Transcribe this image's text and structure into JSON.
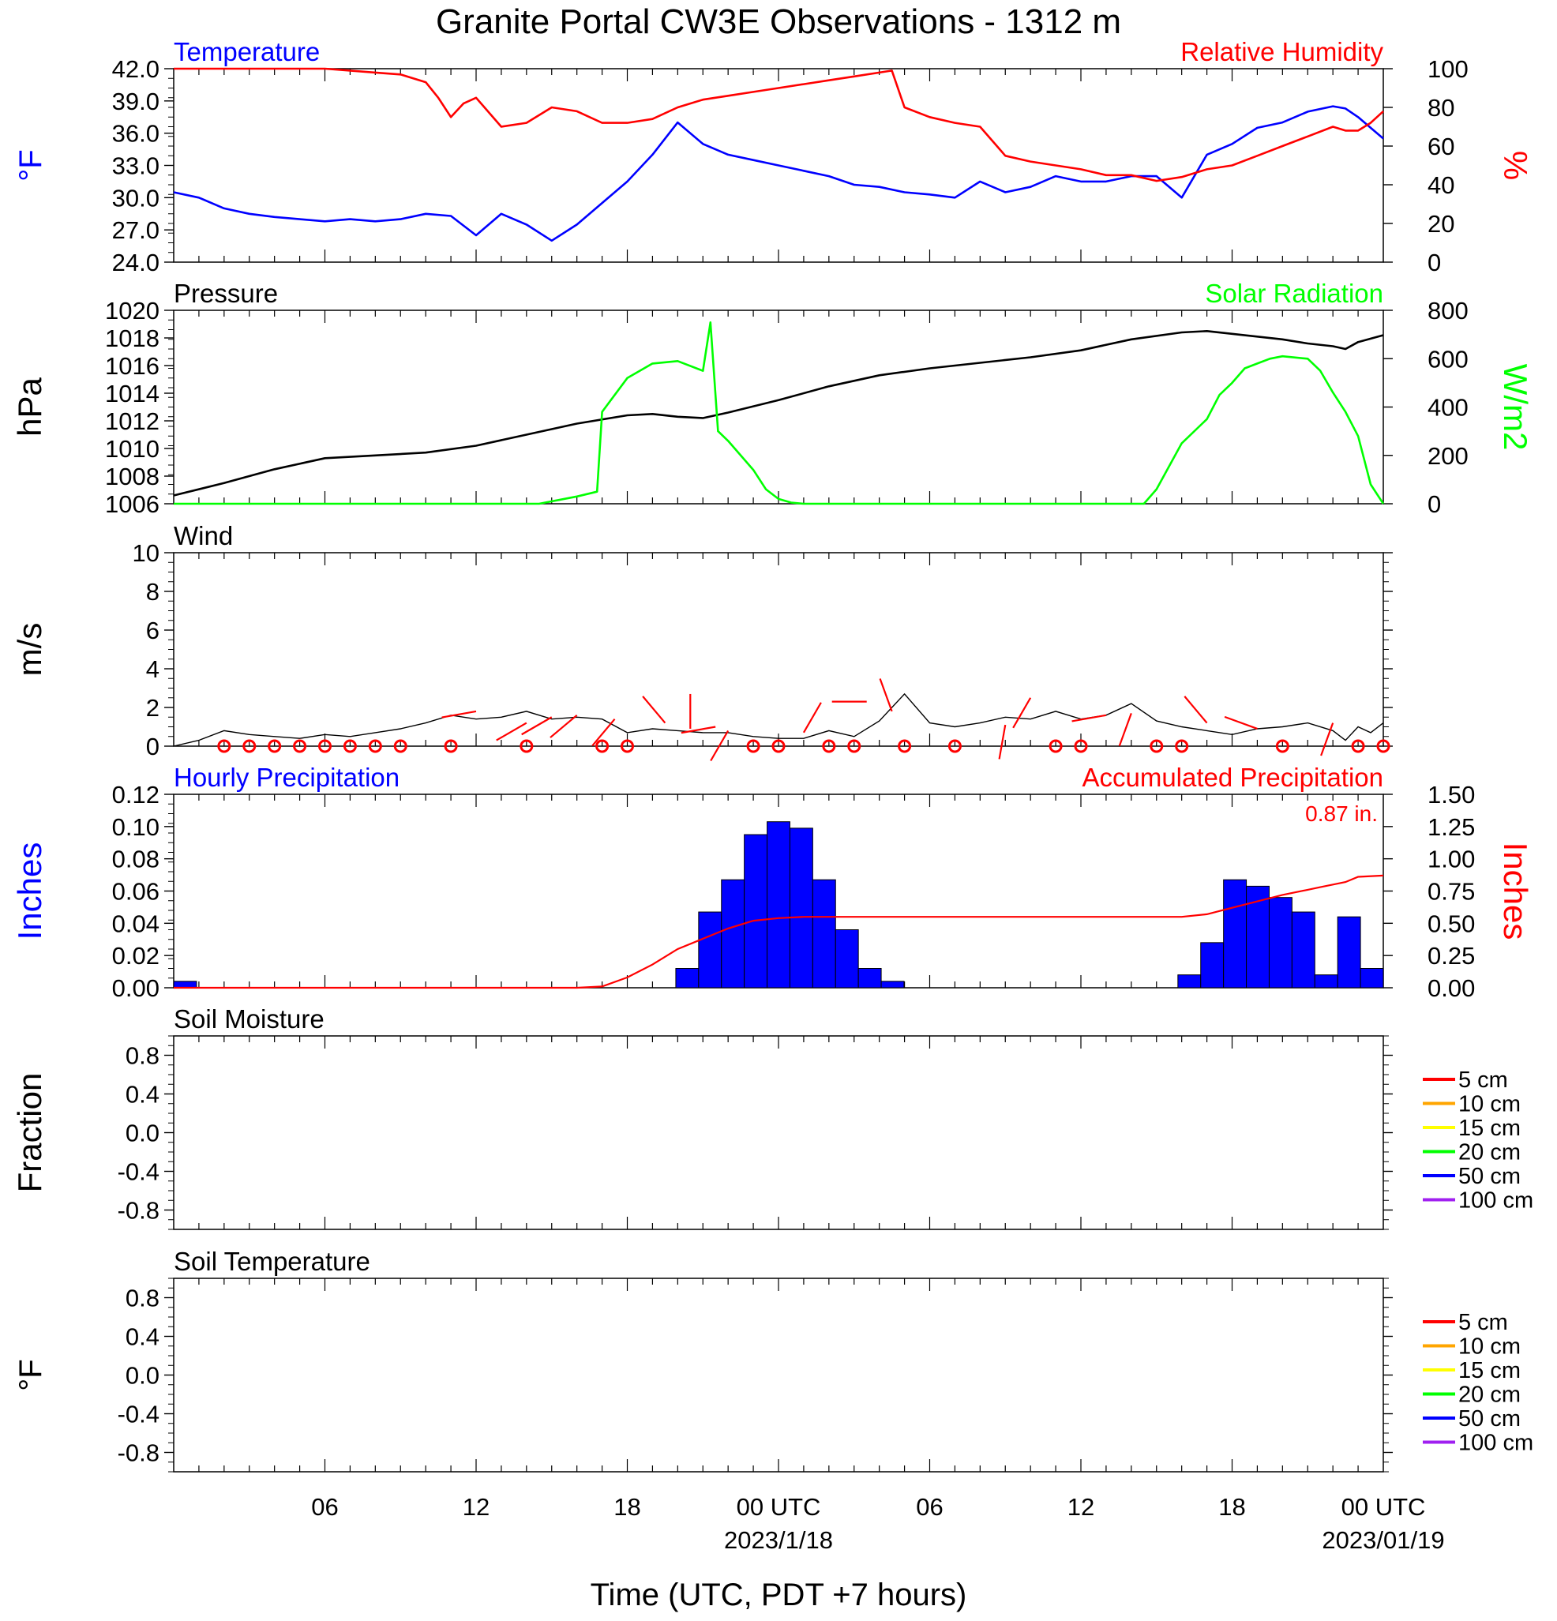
{
  "figure": {
    "title": "Granite Portal CW3E Observations - 1312 m",
    "xaxis_title": "Time (UTC, PDT +7 hours)",
    "x_hours_total": 48,
    "x_ticks": [
      {
        "hour": 6,
        "label": "06",
        "date": ""
      },
      {
        "hour": 12,
        "label": "12",
        "date": ""
      },
      {
        "hour": 18,
        "label": "18",
        "date": ""
      },
      {
        "hour": 24,
        "label": "00 UTC",
        "date": "2023/1/18"
      },
      {
        "hour": 30,
        "label": "06",
        "date": ""
      },
      {
        "hour": 36,
        "label": "12",
        "date": ""
      },
      {
        "hour": 42,
        "label": "18",
        "date": ""
      },
      {
        "hour": 48,
        "label": "00 UTC",
        "date": "2023/01/19"
      }
    ]
  },
  "chart_data": [
    {
      "type": "line",
      "id": "temp_rh",
      "title_left": "Temperature",
      "title_right": "Relative Humidity",
      "ylabel_left": "°F",
      "ylabel_right": "%",
      "ylim_left": [
        24,
        42
      ],
      "ylim_right": [
        0,
        100
      ],
      "yticks_left": [
        "24.0",
        "27.0",
        "30.0",
        "33.0",
        "36.0",
        "39.0",
        "42.0"
      ],
      "yticks_right": [
        "0",
        "20",
        "40",
        "60",
        "80",
        "100"
      ],
      "colors": {
        "left": "#0000ff",
        "right": "#ff0000"
      },
      "series": [
        {
          "name": "Temperature",
          "axis": "left",
          "color": "#0000ff",
          "x": [
            0,
            1,
            2,
            3,
            4,
            5,
            6,
            7,
            8,
            9,
            10,
            11,
            12,
            13,
            14,
            15,
            16,
            17,
            18,
            19,
            20,
            21,
            22,
            23,
            24,
            25,
            26,
            27,
            28,
            29,
            30,
            31,
            32,
            33,
            34,
            35,
            36,
            37,
            38,
            39,
            40,
            41,
            42,
            43,
            44,
            45,
            46,
            46.5,
            47,
            47.5,
            48
          ],
          "y": [
            30.5,
            30.0,
            29.0,
            28.5,
            28.2,
            28.0,
            27.8,
            28.0,
            27.8,
            28.0,
            28.5,
            28.3,
            26.5,
            28.5,
            27.5,
            26.0,
            27.5,
            29.5,
            31.5,
            34.0,
            37.0,
            35.0,
            34.0,
            33.5,
            33.0,
            32.5,
            32.0,
            31.2,
            31.0,
            30.5,
            30.3,
            30.0,
            31.5,
            30.5,
            31.0,
            32.0,
            31.5,
            31.5,
            32.0,
            32.0,
            30.0,
            34.0,
            35.0,
            36.5,
            37.0,
            38.0,
            38.5,
            38.3,
            37.5,
            36.5,
            35.5
          ]
        },
        {
          "name": "Relative Humidity",
          "axis": "right",
          "color": "#ff0000",
          "x": [
            0,
            1,
            2,
            3,
            4,
            5,
            6,
            7,
            8,
            9,
            10,
            10.5,
            11,
            11.5,
            12,
            13,
            14,
            15,
            16,
            17,
            18,
            19,
            20,
            21,
            22,
            23,
            24,
            25,
            26,
            27,
            28,
            28.5,
            29,
            30,
            31,
            32,
            33,
            34,
            35,
            36,
            37,
            38,
            39,
            40,
            41,
            42,
            43,
            44,
            45,
            46,
            46.5,
            47,
            47.5,
            48
          ],
          "y": [
            100,
            100,
            100,
            100,
            100,
            100,
            100,
            99,
            98,
            97,
            93,
            85,
            75,
            82,
            85,
            70,
            72,
            80,
            78,
            72,
            72,
            74,
            80,
            84,
            86,
            88,
            90,
            92,
            94,
            96,
            98,
            99,
            80,
            75,
            72,
            70,
            55,
            52,
            50,
            48,
            45,
            45,
            42,
            44,
            48,
            50,
            55,
            60,
            65,
            70,
            68,
            68,
            72,
            78
          ]
        }
      ]
    },
    {
      "type": "line",
      "id": "pressure_solar",
      "title_left": "Pressure",
      "title_right": "Solar Radiation",
      "ylabel_left": "hPa",
      "ylabel_right": "W/m2",
      "ylim_left": [
        1006,
        1020
      ],
      "ylim_right": [
        0,
        800
      ],
      "yticks_left": [
        "1006",
        "1008",
        "1010",
        "1012",
        "1014",
        "1016",
        "1018",
        "1020"
      ],
      "yticks_right": [
        "0",
        "200",
        "400",
        "600",
        "800"
      ],
      "colors": {
        "left": "#000000",
        "right": "#00ff00"
      },
      "series": [
        {
          "name": "Pressure",
          "axis": "left",
          "color": "#000000",
          "x": [
            0,
            2,
            4,
            6,
            8,
            10,
            12,
            14,
            16,
            18,
            19,
            20,
            21,
            22,
            24,
            26,
            28,
            30,
            32,
            34,
            36,
            38,
            40,
            41,
            42,
            44,
            45,
            46,
            46.5,
            47,
            48
          ],
          "y": [
            1006.6,
            1007.5,
            1008.5,
            1009.3,
            1009.5,
            1009.7,
            1010.2,
            1011.0,
            1011.8,
            1012.4,
            1012.5,
            1012.3,
            1012.2,
            1012.6,
            1013.5,
            1014.5,
            1015.3,
            1015.8,
            1016.2,
            1016.6,
            1017.1,
            1017.9,
            1018.4,
            1018.5,
            1018.3,
            1017.9,
            1017.6,
            1017.4,
            1017.2,
            1017.7,
            1018.2
          ]
        },
        {
          "name": "Solar Radiation",
          "axis": "right",
          "color": "#00ff00",
          "x": [
            0,
            14.5,
            16,
            16.8,
            17,
            18,
            19,
            20,
            21,
            21.3,
            21.6,
            22,
            23,
            23.5,
            24,
            24.5,
            25,
            26,
            30,
            35,
            38.5,
            39,
            40,
            41,
            41.5,
            42,
            42.5,
            43,
            43.5,
            44,
            45,
            45.5,
            46,
            46.5,
            47,
            47.5,
            48
          ],
          "y": [
            0,
            0,
            30,
            50,
            380,
            520,
            580,
            590,
            550,
            750,
            300,
            260,
            140,
            60,
            20,
            5,
            0,
            0,
            0,
            0,
            0,
            60,
            250,
            350,
            450,
            500,
            560,
            580,
            600,
            610,
            600,
            550,
            460,
            380,
            280,
            80,
            0
          ]
        }
      ]
    },
    {
      "type": "line",
      "id": "wind",
      "title_left": "Wind",
      "ylabel_left": "m/s",
      "ylim_left": [
        0,
        10
      ],
      "yticks_left": [
        "0",
        "2",
        "4",
        "6",
        "8",
        "10"
      ],
      "colors": {
        "speed": "#000000",
        "barb": "#ff0000"
      },
      "series": [
        {
          "name": "Wind",
          "color": "#000000",
          "x": [
            0,
            1,
            2,
            3,
            4,
            5,
            6,
            7,
            8,
            9,
            10,
            11,
            12,
            13,
            14,
            15,
            16,
            17,
            18,
            19,
            20,
            21,
            22,
            23,
            24,
            25,
            26,
            27,
            28,
            29,
            30,
            31,
            32,
            33,
            34,
            35,
            36,
            37,
            38,
            39,
            40,
            41,
            42,
            43,
            44,
            45,
            46,
            46.5,
            47,
            47.5,
            48
          ],
          "y": [
            0,
            0.3,
            0.8,
            0.6,
            0.5,
            0.4,
            0.6,
            0.5,
            0.7,
            0.9,
            1.2,
            1.6,
            1.4,
            1.5,
            1.8,
            1.4,
            1.5,
            1.4,
            0.7,
            0.9,
            0.8,
            0.7,
            0.7,
            0.5,
            0.4,
            0.4,
            0.8,
            0.5,
            1.3,
            2.7,
            1.2,
            1.0,
            1.2,
            1.5,
            1.4,
            1.8,
            1.4,
            1.6,
            2.2,
            1.3,
            1.0,
            0.8,
            0.6,
            0.9,
            1.0,
            1.2,
            0.8,
            0.3,
            1.0,
            0.7,
            1.2
          ]
        }
      ],
      "calm_markers_hours": [
        2,
        3,
        4,
        5,
        6,
        7,
        8,
        9,
        11,
        14,
        17,
        18,
        23,
        24,
        26,
        27,
        29,
        31,
        35,
        36,
        39,
        40,
        44,
        47,
        48
      ],
      "barbs": [
        {
          "hour": 12,
          "speed": 1.8,
          "dir": 260
        },
        {
          "hour": 14,
          "speed": 1.2,
          "dir": 240
        },
        {
          "hour": 15,
          "speed": 1.5,
          "dir": 240
        },
        {
          "hour": 16,
          "speed": 1.6,
          "dir": 230
        },
        {
          "hour": 17.5,
          "speed": 1.4,
          "dir": 220
        },
        {
          "hour": 19.5,
          "speed": 1.2,
          "dir": 320
        },
        {
          "hour": 20.5,
          "speed": 0.9,
          "dir": 0
        },
        {
          "hour": 21.5,
          "speed": 1.0,
          "dir": 260
        },
        {
          "hour": 22,
          "speed": 0.8,
          "dir": 210
        },
        {
          "hour": 25,
          "speed": 0.7,
          "dir": 30
        },
        {
          "hour": 27.5,
          "speed": 2.3,
          "dir": 270
        },
        {
          "hour": 28.5,
          "speed": 1.8,
          "dir": 340
        },
        {
          "hour": 33,
          "speed": 1.1,
          "dir": 190
        },
        {
          "hour": 34,
          "speed": 2.5,
          "dir": 210
        },
        {
          "hour": 37,
          "speed": 1.6,
          "dir": 260
        },
        {
          "hour": 38,
          "speed": 1.7,
          "dir": 200
        },
        {
          "hour": 41,
          "speed": 1.2,
          "dir": 320
        },
        {
          "hour": 43,
          "speed": 0.9,
          "dir": 290
        },
        {
          "hour": 46,
          "speed": 1.2,
          "dir": 200
        }
      ]
    },
    {
      "type": "bar",
      "id": "precip",
      "title_left": "Hourly Precipitation",
      "title_right": "Accumulated Precipitation",
      "total_label": "0.87 in.",
      "ylabel_left": "Inches",
      "ylabel_right": "Inches",
      "ylim_left": [
        0,
        0.12
      ],
      "ylim_right": [
        0,
        1.5
      ],
      "yticks_left": [
        "0.00",
        "0.02",
        "0.04",
        "0.06",
        "0.08",
        "0.10",
        "0.12"
      ],
      "yticks_right": [
        "0.00",
        "0.25",
        "0.50",
        "0.75",
        "1.00",
        "1.25",
        "1.50"
      ],
      "colors": {
        "bars": "#0000ff",
        "accum": "#ff0000"
      },
      "hourly": [
        0.004,
        0,
        0,
        0,
        0,
        0,
        0,
        0,
        0,
        0,
        0,
        0,
        0,
        0,
        0,
        0,
        0,
        0,
        0,
        0,
        0,
        0,
        0.012,
        0.047,
        0.067,
        0.095,
        0.103,
        0.099,
        0.067,
        0.036,
        0.012,
        0.004,
        0,
        0,
        0,
        0,
        0,
        0,
        0,
        0,
        0,
        0,
        0,
        0,
        0.008,
        0.028,
        0.067,
        0.063,
        0.056,
        0.047,
        0.008,
        0.044,
        0.012
      ],
      "accum_x": [
        0,
        16,
        17,
        18,
        19,
        20,
        21,
        22,
        23,
        24,
        25,
        26,
        30,
        35,
        40,
        41,
        42,
        43,
        44,
        45,
        45.5,
        46,
        46.5,
        47,
        48
      ],
      "accum_y": [
        0,
        0,
        0.01,
        0.08,
        0.18,
        0.3,
        0.38,
        0.46,
        0.52,
        0.54,
        0.55,
        0.55,
        0.55,
        0.55,
        0.55,
        0.57,
        0.62,
        0.67,
        0.72,
        0.76,
        0.78,
        0.8,
        0.82,
        0.86,
        0.87
      ]
    },
    {
      "type": "line",
      "id": "soil_moisture",
      "title_left": "Soil Moisture",
      "ylabel_left": "Fraction",
      "ylim_left": [
        -1,
        1
      ],
      "yticks_left": [
        "-0.8",
        "-0.4",
        "0.0",
        "0.4",
        "0.8"
      ],
      "legend": [
        {
          "label": "5 cm",
          "color": "#ff0000"
        },
        {
          "label": "10 cm",
          "color": "#ffa500"
        },
        {
          "label": "15 cm",
          "color": "#ffff00"
        },
        {
          "label": "20 cm",
          "color": "#00ff00"
        },
        {
          "label": "50 cm",
          "color": "#0000ff"
        },
        {
          "label": "100 cm",
          "color": "#a020f0"
        }
      ]
    },
    {
      "type": "line",
      "id": "soil_temp",
      "title_left": "Soil Temperature",
      "ylabel_left": "°F",
      "ylim_left": [
        -1,
        1
      ],
      "yticks_left": [
        "-0.8",
        "-0.4",
        "0.0",
        "0.4",
        "0.8"
      ],
      "legend": [
        {
          "label": "5 cm",
          "color": "#ff0000"
        },
        {
          "label": "10 cm",
          "color": "#ffa500"
        },
        {
          "label": "15 cm",
          "color": "#ffff00"
        },
        {
          "label": "20 cm",
          "color": "#00ff00"
        },
        {
          "label": "50 cm",
          "color": "#0000ff"
        },
        {
          "label": "100 cm",
          "color": "#a020f0"
        }
      ]
    }
  ]
}
